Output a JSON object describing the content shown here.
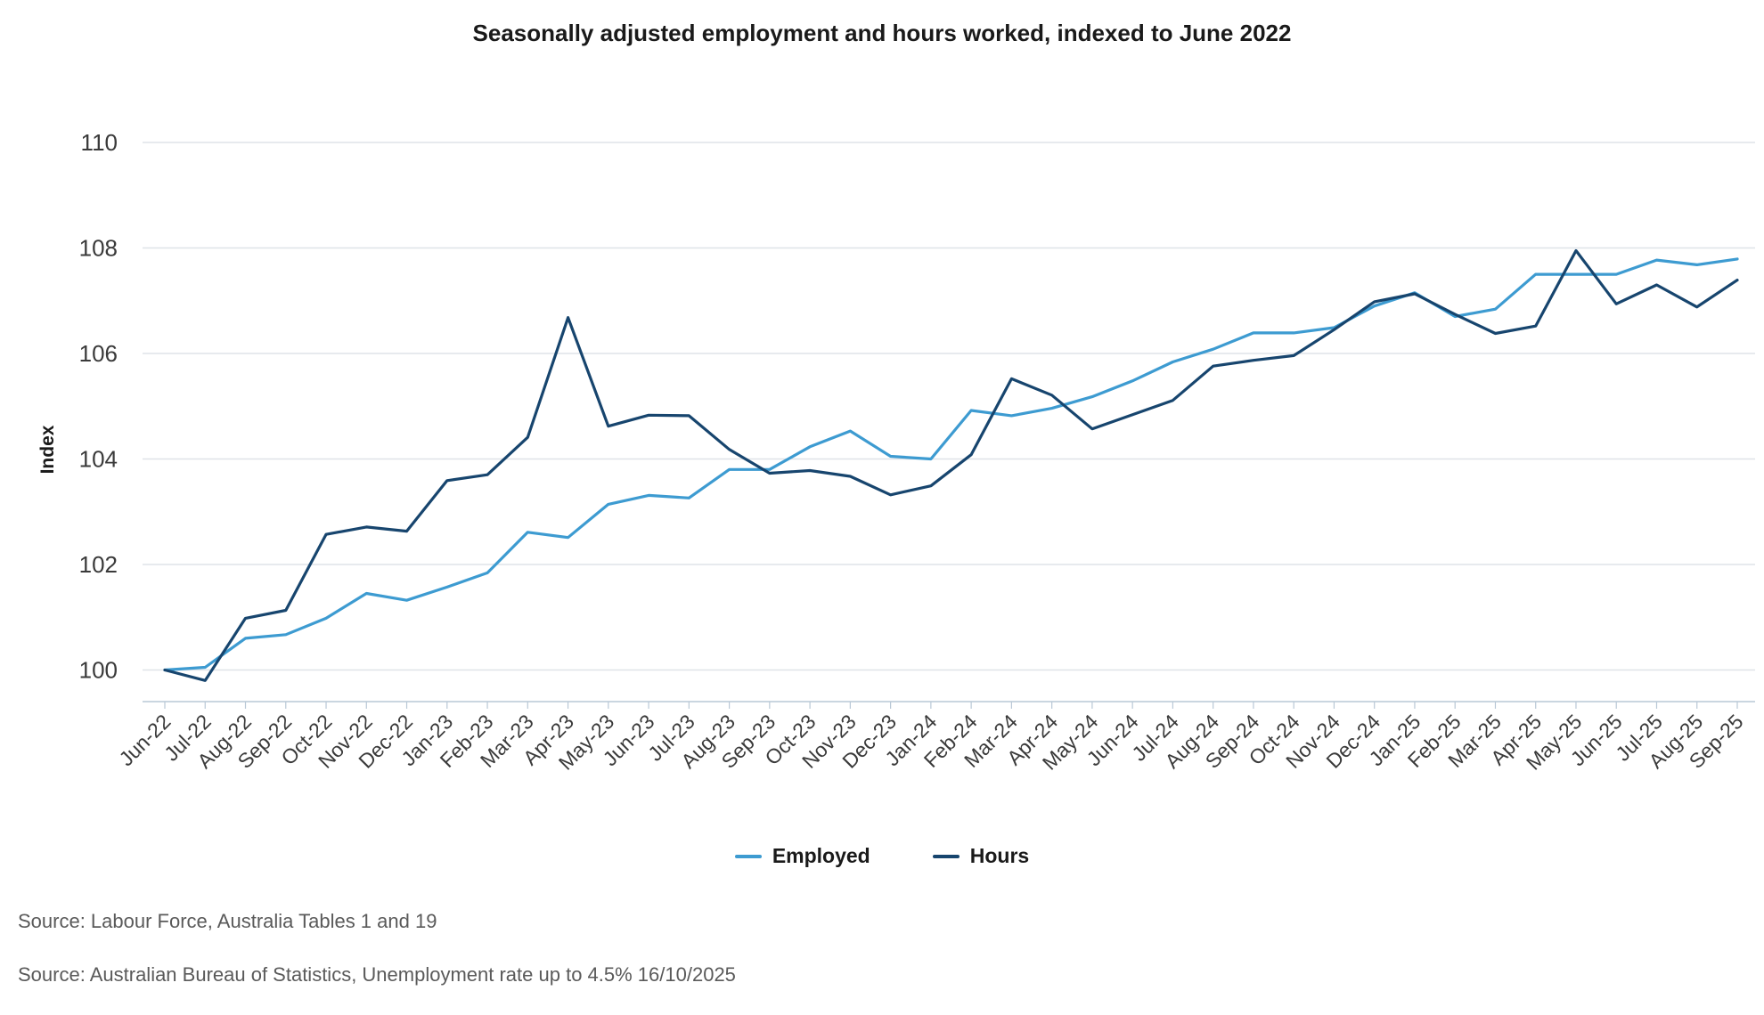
{
  "chart_data": {
    "type": "line",
    "title": "Seasonally adjusted employment and hours worked, indexed to June 2022",
    "xlabel": "",
    "ylabel": "Index",
    "ylim": [
      99.4,
      110
    ],
    "yticks": [
      100,
      102,
      104,
      106,
      108,
      110
    ],
    "grid": true,
    "legend_position": "bottom",
    "categories": [
      "Jun-22",
      "Jul-22",
      "Aug-22",
      "Sep-22",
      "Oct-22",
      "Nov-22",
      "Dec-22",
      "Jan-23",
      "Feb-23",
      "Mar-23",
      "Apr-23",
      "May-23",
      "Jun-23",
      "Jul-23",
      "Aug-23",
      "Sep-23",
      "Oct-23",
      "Nov-23",
      "Dec-23",
      "Jan-24",
      "Feb-24",
      "Mar-24",
      "Apr-24",
      "May-24",
      "Jun-24",
      "Jul-24",
      "Aug-24",
      "Sep-24",
      "Oct-24",
      "Nov-24",
      "Dec-24",
      "Jan-25",
      "Feb-25",
      "Mar-25",
      "Apr-25",
      "May-25",
      "Jun-25",
      "Jul-25",
      "Aug-25",
      "Sep-25"
    ],
    "series": [
      {
        "name": "Employed",
        "color": "#3d9bd1",
        "values": [
          100.0,
          100.05,
          100.6,
          100.67,
          100.98,
          101.45,
          101.32,
          101.57,
          101.84,
          102.61,
          102.51,
          103.14,
          103.31,
          103.26,
          103.8,
          103.8,
          104.23,
          104.53,
          104.05,
          104.0,
          104.92,
          104.82,
          104.96,
          105.18,
          105.48,
          105.84,
          106.08,
          106.39,
          106.39,
          106.49,
          106.9,
          107.15,
          106.7,
          106.84,
          107.5,
          107.5,
          107.5,
          107.77,
          107.68,
          107.79
        ]
      },
      {
        "name": "Hours",
        "color": "#17456e",
        "values": [
          100.0,
          99.8,
          100.98,
          101.13,
          102.57,
          102.71,
          102.63,
          103.59,
          103.7,
          104.41,
          106.68,
          104.62,
          104.83,
          104.82,
          104.18,
          103.73,
          103.78,
          103.67,
          103.32,
          103.49,
          104.08,
          105.52,
          105.21,
          104.57,
          104.84,
          105.11,
          105.76,
          105.87,
          105.96,
          106.45,
          106.98,
          107.13,
          106.74,
          106.38,
          106.52,
          107.95,
          106.94,
          107.3,
          106.88,
          107.39
        ]
      }
    ]
  },
  "sources": [
    "Source: Labour Force, Australia Tables 1 and 19",
    "Source: Australian Bureau of Statistics, Unemployment rate up to 4.5% 16/10/2025"
  ],
  "colors": {
    "grid": "#dfe3e8",
    "axis": "#b9c8d6",
    "tick_text": "#3a3a3a"
  }
}
